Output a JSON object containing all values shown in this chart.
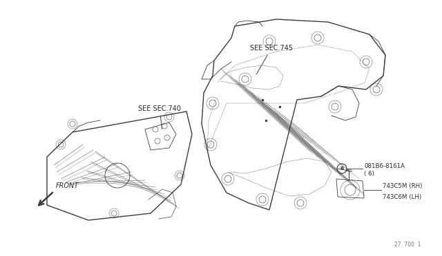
{
  "bg_color": "#f5f5f0",
  "fig_width": 6.4,
  "fig_height": 3.72,
  "dpi": 100,
  "page_num": "27  700  1",
  "line_color": "#3a3a3a",
  "text_color": "#2a2a2a",
  "label_fontsize": 7.0,
  "small_fontsize": 6.2,
  "tiny_fontsize": 5.8,
  "annotations": {
    "see_sec_740": "SEE SEC.740",
    "see_sec_745": "SEE SEC.745",
    "part_b_num": "081B6-8161A",
    "part_b_qty": "( 6)",
    "part_rh": "743C5M (RH)",
    "part_lh": "743C6M (LH)",
    "front": "FRONT"
  }
}
